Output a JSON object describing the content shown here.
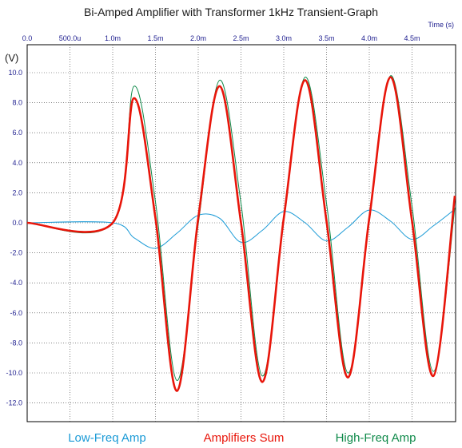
{
  "chart_data": {
    "type": "line",
    "title": "Bi-Amped Amplifier with Transformer 1kHz Transient-Graph",
    "xlabel": "Time  (s)",
    "ylabel": "(V)",
    "xlim": [
      0,
      0.005
    ],
    "ylim": [
      -13,
      11
    ],
    "grid": true,
    "x_axis_position": "top",
    "x_ticks": [
      {
        "value": 0,
        "label": "0.0"
      },
      {
        "value": 0.0005,
        "label": "500.0u"
      },
      {
        "value": 0.001,
        "label": "1.0m"
      },
      {
        "value": 0.0015,
        "label": "1.5m"
      },
      {
        "value": 0.002,
        "label": "2.0m"
      },
      {
        "value": 0.0025,
        "label": "2.5m"
      },
      {
        "value": 0.003,
        "label": "3.0m"
      },
      {
        "value": 0.0035,
        "label": "3.5m"
      },
      {
        "value": 0.004,
        "label": "4.0m"
      },
      {
        "value": 0.0045,
        "label": "4.5m"
      }
    ],
    "y_ticks": [
      {
        "value": 10,
        "label": "10.0"
      },
      {
        "value": 8,
        "label": "8.0"
      },
      {
        "value": 6,
        "label": "6.0"
      },
      {
        "value": 4,
        "label": "4.0"
      },
      {
        "value": 2,
        "label": "2.0"
      },
      {
        "value": 0,
        "label": "0.0"
      },
      {
        "value": -2,
        "label": "-2.0"
      },
      {
        "value": -4,
        "label": "-4.0"
      },
      {
        "value": -6,
        "label": "-6.0"
      },
      {
        "value": -8,
        "label": "-8.0"
      },
      {
        "value": -10,
        "label": "-10.0"
      },
      {
        "value": -12,
        "label": "-12.0"
      }
    ],
    "legend_position": "bottom",
    "series": [
      {
        "name": "Low-Freq Amp",
        "color": "#1a9ad6",
        "x": [
          0,
          0.001,
          0.00125,
          0.0015,
          0.00175,
          0.002,
          0.00225,
          0.0025,
          0.00275,
          0.003,
          0.00325,
          0.0035,
          0.00375,
          0.004,
          0.00425,
          0.0045,
          0.00475,
          0.005
        ],
        "y": [
          0,
          0,
          -1.0,
          -1.7,
          -0.7,
          0.5,
          0.3,
          -1.3,
          -0.5,
          0.75,
          0.0,
          -1.2,
          -0.3,
          0.85,
          0.1,
          -1.1,
          -0.2,
          0.9
        ]
      },
      {
        "name": "Amplifiers Sum",
        "color": "#e8150a",
        "x": [
          0,
          0.001,
          0.00125,
          0.0015,
          0.00175,
          0.002,
          0.00225,
          0.0025,
          0.00275,
          0.003,
          0.00325,
          0.0035,
          0.00375,
          0.004,
          0.00425,
          0.0045,
          0.00475,
          0.005
        ],
        "y": [
          0,
          0,
          8.3,
          0.3,
          -11.2,
          0.3,
          9.1,
          0.0,
          -10.6,
          0.3,
          9.5,
          0.1,
          -10.3,
          0.3,
          9.7,
          0.1,
          -10.2,
          1.8
        ]
      },
      {
        "name": "High-Freq Amp",
        "color": "#0f8a4a",
        "x": [
          0,
          0.001,
          0.00125,
          0.0015,
          0.00175,
          0.002,
          0.00225,
          0.0025,
          0.00275,
          0.003,
          0.00325,
          0.0035,
          0.00375,
          0.004,
          0.00425,
          0.0045,
          0.00475,
          0.005
        ],
        "y": [
          0,
          0,
          9.1,
          1.4,
          -10.5,
          -0.1,
          9.5,
          1.3,
          -10.2,
          0.1,
          9.7,
          1.3,
          -10.0,
          0.1,
          9.8,
          1.1,
          -9.9,
          1.0
        ]
      }
    ]
  }
}
